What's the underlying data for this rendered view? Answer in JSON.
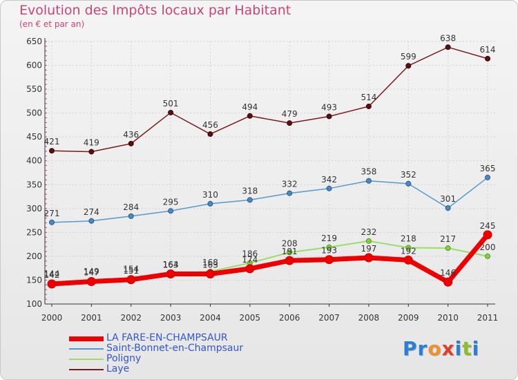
{
  "title": "Evolution des Impôts locaux par Habitant",
  "subtitle": "(en € et par an)",
  "logo": {
    "letters": [
      "P",
      "r",
      "o",
      "x",
      "i",
      "t",
      "i"
    ],
    "colors": [
      "#2a7fd4",
      "#2a7fd4",
      "#f0902a",
      "#e0402a",
      "#2a7fd4",
      "#8cbf2a",
      "#2a7fd4"
    ]
  },
  "chart_data": {
    "type": "line",
    "x": [
      "2000",
      "2001",
      "2002",
      "2003",
      "2004",
      "2005",
      "2006",
      "2007",
      "2008",
      "2009",
      "2010",
      "2011"
    ],
    "ylim": [
      100,
      650
    ],
    "yticks": [
      100,
      150,
      200,
      250,
      300,
      350,
      400,
      450,
      500,
      550,
      600,
      650
    ],
    "grid": true,
    "legend_position": "bottom-left",
    "series": [
      {
        "name": "Laye",
        "color": "#7a1a1a",
        "values": [
          421,
          419,
          436,
          501,
          456,
          494,
          479,
          493,
          514,
          599,
          638,
          614
        ],
        "labels": [
          "421",
          "419",
          "436",
          "501",
          "456",
          "494",
          "479",
          "493",
          "514",
          "599",
          "638",
          "614"
        ]
      },
      {
        "name": "Saint-Bonnet-en-Champsaur",
        "color": "#5599cc",
        "values": [
          271,
          274,
          284,
          295,
          310,
          318,
          332,
          342,
          358,
          352,
          301,
          365
        ],
        "labels": [
          "271",
          "274",
          "284",
          "295",
          "310",
          "318",
          "332",
          "342",
          "358",
          "352",
          "301",
          "365"
        ]
      },
      {
        "name": "Poligny",
        "color": "#99dd66",
        "values": [
          144,
          149,
          154,
          164,
          168,
          186,
          208,
          219,
          232,
          218,
          217,
          200
        ],
        "labels": [
          "144",
          "149",
          "154",
          "164",
          "168",
          "186",
          "208",
          "219",
          "232",
          "218",
          "217",
          "200"
        ]
      },
      {
        "name": "LA FARE-EN-CHAMPSAUR",
        "color": "#ee0000",
        "values": [
          142,
          147,
          151,
          163,
          163,
          174,
          191,
          193,
          197,
          192,
          146,
          245
        ],
        "labels": [
          "142",
          "147",
          "151",
          "163",
          "163",
          "174",
          "191",
          "193",
          "197",
          "192",
          "146",
          "245"
        ]
      }
    ],
    "legend_order": [
      "LA FARE-EN-CHAMPSAUR",
      "Saint-Bonnet-en-Champsaur",
      "Poligny",
      "Laye"
    ]
  }
}
